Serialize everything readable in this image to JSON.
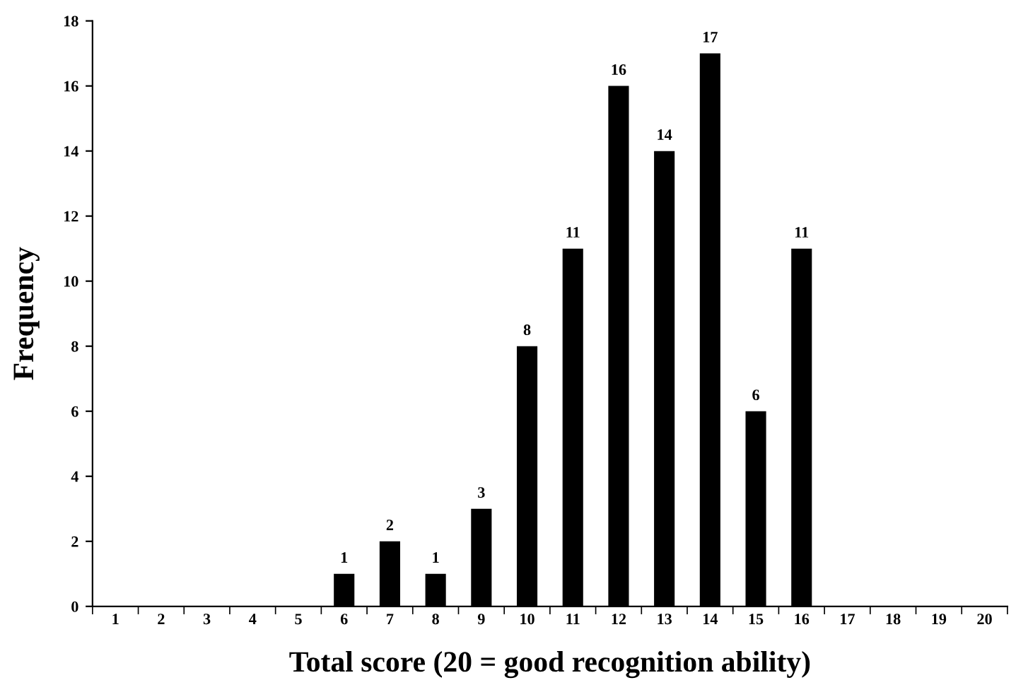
{
  "chart_data": {
    "type": "bar",
    "xlabel": "Total score (20 = good recognition ability)",
    "ylabel": "Frequency",
    "categories": [
      "1",
      "2",
      "3",
      "4",
      "5",
      "6",
      "7",
      "8",
      "9",
      "10",
      "11",
      "12",
      "13",
      "14",
      "15",
      "16",
      "17",
      "18",
      "19",
      "20"
    ],
    "values": [
      0,
      0,
      0,
      0,
      0,
      1,
      2,
      1,
      3,
      8,
      11,
      16,
      14,
      17,
      6,
      11,
      0,
      0,
      0,
      0
    ],
    "value_labels": [
      null,
      null,
      null,
      null,
      null,
      "1",
      "2",
      "1",
      "3",
      "8",
      "11",
      "16",
      "14",
      "17",
      "6",
      "11",
      null,
      null,
      null,
      null
    ],
    "color": "#000000",
    "ylim": [
      0,
      18
    ],
    "yticks": [
      0,
      2,
      4,
      6,
      8,
      10,
      12,
      14,
      16,
      18
    ],
    "grid": false,
    "legend": false
  }
}
